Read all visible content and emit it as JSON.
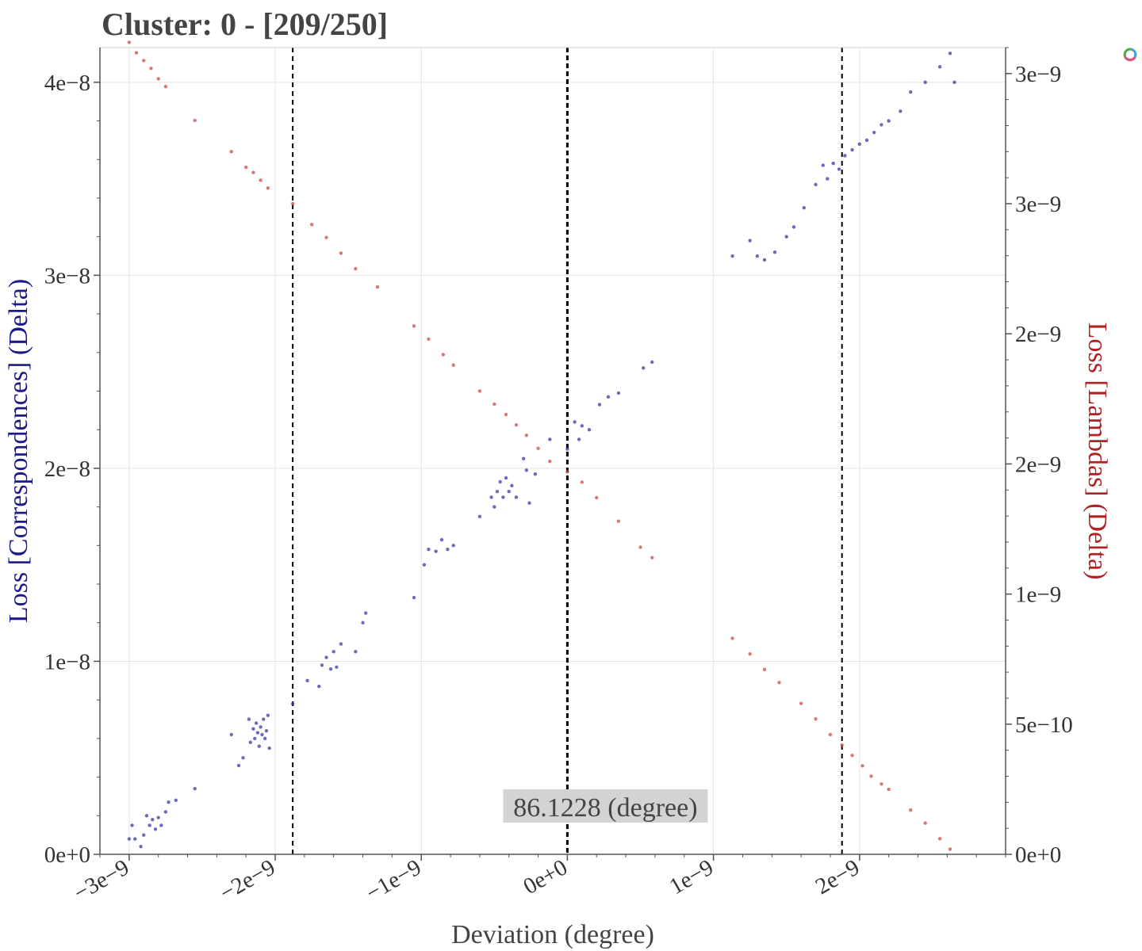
{
  "colors": {
    "left_series": "#3a3aa8",
    "right_series": "#cd4a4a",
    "grid": "#e3e3e3",
    "annotation_bg": "#d3d3d3"
  },
  "toolbar": {
    "logo_icon": "bokeh-logo-icon"
  },
  "chart_data": {
    "type": "scatter",
    "title": "Cluster: 0 - [209/250]",
    "xlabel": "Deviation (degree)",
    "ylabel": "Loss [Correspondences] (Delta)",
    "y2label": "Loss [Lambdas] (Delta)",
    "xlim": [
      -3.2e-09,
      3e-09
    ],
    "ylim": [
      0,
      4.18e-08
    ],
    "y2lim": [
      0,
      3.1e-09
    ],
    "x_ticks": [
      "−3e−9",
      "−2e−9",
      "−1e−9",
      "0e+0",
      "1e−9",
      "2e−9"
    ],
    "x_tick_values": [
      -3e-09,
      -2e-09,
      -1e-09,
      0,
      1e-09,
      2e-09
    ],
    "y_ticks": [
      "0e+0",
      "1e−8",
      "2e−8",
      "3e−8",
      "4e−8"
    ],
    "y_tick_values": [
      0,
      1e-08,
      2e-08,
      3e-08,
      4e-08
    ],
    "y2_ticks": [
      "0e+0",
      "5e−10",
      "1e−9",
      "2e−9",
      "2e−9",
      "3e−9",
      "3e−9"
    ],
    "y2_tick_values": [
      0,
      5e-10,
      1e-09,
      1.5e-09,
      2e-09,
      2.5e-09,
      3e-09
    ],
    "vlines": [
      {
        "x": -1.88e-09,
        "style": "dashed"
      },
      {
        "x": 0,
        "style": "dashed-bold"
      },
      {
        "x": 1.88e-09,
        "style": "dashed"
      }
    ],
    "annotation": {
      "text": "86.1228 (degree)",
      "x": 0
    },
    "grid": true,
    "series": [
      {
        "axis": "left",
        "color": "#3a3aa8",
        "points": [
          [
            -3e-09,
            8e-10
          ],
          [
            -2.98e-09,
            1.5e-09
          ],
          [
            -2.96e-09,
            8e-10
          ],
          [
            -2.92e-09,
            4e-10
          ],
          [
            -2.9e-09,
            1e-09
          ],
          [
            -2.88e-09,
            2e-09
          ],
          [
            -2.86e-09,
            1.5e-09
          ],
          [
            -2.84e-09,
            1.8e-09
          ],
          [
            -2.82e-09,
            1.3e-09
          ],
          [
            -2.8e-09,
            1.9e-09
          ],
          [
            -2.78e-09,
            1.5e-09
          ],
          [
            -2.75e-09,
            2.2e-09
          ],
          [
            -2.73e-09,
            2.7e-09
          ],
          [
            -2.68e-09,
            2.8e-09
          ],
          [
            -2.55e-09,
            3.4e-09
          ],
          [
            -2.3e-09,
            6.2e-09
          ],
          [
            -2.25e-09,
            4.6e-09
          ],
          [
            -2.22e-09,
            5e-09
          ],
          [
            -2.18e-09,
            7e-09
          ],
          [
            -2.17e-09,
            5.8e-09
          ],
          [
            -2.15e-09,
            6.5e-09
          ],
          [
            -2.14e-09,
            6e-09
          ],
          [
            -2.13e-09,
            6.8e-09
          ],
          [
            -2.12e-09,
            6.3e-09
          ],
          [
            -2.11e-09,
            5.6e-09
          ],
          [
            -2.1e-09,
            6.6e-09
          ],
          [
            -2.09e-09,
            6.2e-09
          ],
          [
            -2.08e-09,
            7e-09
          ],
          [
            -2.07e-09,
            6e-09
          ],
          [
            -2.06e-09,
            6.4e-09
          ],
          [
            -2.05e-09,
            7.2e-09
          ],
          [
            -2.04e-09,
            5.5e-09
          ],
          [
            -1.88e-09,
            7.8e-09
          ],
          [
            -1.78e-09,
            9e-09
          ],
          [
            -1.7e-09,
            8.7e-09
          ],
          [
            -1.68e-09,
            9.8e-09
          ],
          [
            -1.65e-09,
            1.02e-08
          ],
          [
            -1.62e-09,
            9.6e-09
          ],
          [
            -1.6e-09,
            1.05e-08
          ],
          [
            -1.58e-09,
            9.7e-09
          ],
          [
            -1.55e-09,
            1.09e-08
          ],
          [
            -1.45e-09,
            1.05e-08
          ],
          [
            -1.4e-09,
            1.2e-08
          ],
          [
            -1.38e-09,
            1.25e-08
          ],
          [
            -1.05e-09,
            1.33e-08
          ],
          [
            -9.8e-10,
            1.5e-08
          ],
          [
            -9.5e-10,
            1.58e-08
          ],
          [
            -9e-10,
            1.57e-08
          ],
          [
            -8.6e-10,
            1.63e-08
          ],
          [
            -8.2e-10,
            1.58e-08
          ],
          [
            -7.8e-10,
            1.6e-08
          ],
          [
            -6e-10,
            1.75e-08
          ],
          [
            -5.2e-10,
            1.85e-08
          ],
          [
            -5e-10,
            1.8e-08
          ],
          [
            -4.8e-10,
            1.88e-08
          ],
          [
            -4.6e-10,
            1.93e-08
          ],
          [
            -4.4e-10,
            1.85e-08
          ],
          [
            -4.2e-10,
            1.95e-08
          ],
          [
            -4e-10,
            1.88e-08
          ],
          [
            -3.8e-10,
            1.91e-08
          ],
          [
            -3.5e-10,
            1.85e-08
          ],
          [
            -3e-10,
            2.05e-08
          ],
          [
            -2.8e-10,
            1.99e-08
          ],
          [
            -2.6e-10,
            1.82e-08
          ],
          [
            -2.2e-10,
            1.97e-08
          ],
          [
            -1.2e-10,
            2.15e-08
          ],
          [
            0.0,
            2.1e-08
          ],
          [
            5e-11,
            2.24e-08
          ],
          [
            8e-11,
            2.15e-08
          ],
          [
            1e-10,
            2.22e-08
          ],
          [
            1.5e-10,
            2.2e-08
          ],
          [
            2.2e-10,
            2.33e-08
          ],
          [
            2.8e-10,
            2.37e-08
          ],
          [
            3.5e-10,
            2.39e-08
          ],
          [
            5.2e-10,
            2.52e-08
          ],
          [
            5.8e-10,
            2.55e-08
          ],
          [
            1.13e-09,
            3.1e-08
          ],
          [
            1.25e-09,
            3.18e-08
          ],
          [
            1.3e-09,
            3.1e-08
          ],
          [
            1.35e-09,
            3.08e-08
          ],
          [
            1.42e-09,
            3.12e-08
          ],
          [
            1.5e-09,
            3.2e-08
          ],
          [
            1.55e-09,
            3.25e-08
          ],
          [
            1.62e-09,
            3.35e-08
          ],
          [
            1.7e-09,
            3.47e-08
          ],
          [
            1.75e-09,
            3.57e-08
          ],
          [
            1.78e-09,
            3.5e-08
          ],
          [
            1.82e-09,
            3.58e-08
          ],
          [
            1.86e-09,
            3.55e-08
          ],
          [
            1.9e-09,
            3.62e-08
          ],
          [
            1.95e-09,
            3.65e-08
          ],
          [
            2e-09,
            3.68e-08
          ],
          [
            2.05e-09,
            3.7e-08
          ],
          [
            2.1e-09,
            3.74e-08
          ],
          [
            2.15e-09,
            3.78e-08
          ],
          [
            2.2e-09,
            3.8e-08
          ],
          [
            2.28e-09,
            3.85e-08
          ],
          [
            2.35e-09,
            3.95e-08
          ],
          [
            2.45e-09,
            4e-08
          ],
          [
            2.55e-09,
            4.08e-08
          ],
          [
            2.62e-09,
            4.15e-08
          ],
          [
            2.65e-09,
            4e-08
          ]
        ]
      },
      {
        "axis": "right",
        "color": "#cd4a4a",
        "points": [
          [
            -3e-09,
            3.12e-09
          ],
          [
            -2.95e-09,
            3.08e-09
          ],
          [
            -2.9e-09,
            3.05e-09
          ],
          [
            -2.85e-09,
            3.02e-09
          ],
          [
            -2.8e-09,
            2.98e-09
          ],
          [
            -2.75e-09,
            2.95e-09
          ],
          [
            -2.55e-09,
            2.82e-09
          ],
          [
            -2.3e-09,
            2.7e-09
          ],
          [
            -2.2e-09,
            2.64e-09
          ],
          [
            -2.15e-09,
            2.62e-09
          ],
          [
            -2.1e-09,
            2.59e-09
          ],
          [
            -2.05e-09,
            2.56e-09
          ],
          [
            -1.88e-09,
            2.5e-09
          ],
          [
            -1.75e-09,
            2.42e-09
          ],
          [
            -1.65e-09,
            2.37e-09
          ],
          [
            -1.55e-09,
            2.31e-09
          ],
          [
            -1.45e-09,
            2.25e-09
          ],
          [
            -1.3e-09,
            2.18e-09
          ],
          [
            -1.05e-09,
            2.03e-09
          ],
          [
            -9.5e-10,
            1.98e-09
          ],
          [
            -8.5e-10,
            1.92e-09
          ],
          [
            -7.8e-10,
            1.88e-09
          ],
          [
            -6e-10,
            1.78e-09
          ],
          [
            -5e-10,
            1.73e-09
          ],
          [
            -4.2e-10,
            1.69e-09
          ],
          [
            -3.5e-10,
            1.65e-09
          ],
          [
            -2.8e-10,
            1.61e-09
          ],
          [
            -2e-10,
            1.56e-09
          ],
          [
            -1.2e-10,
            1.51e-09
          ],
          [
            0.0,
            1.47e-09
          ],
          [
            1e-10,
            1.43e-09
          ],
          [
            2e-10,
            1.37e-09
          ],
          [
            3.5e-10,
            1.28e-09
          ],
          [
            5e-10,
            1.18e-09
          ],
          [
            5.8e-10,
            1.14e-09
          ],
          [
            1.13e-09,
            8.3e-10
          ],
          [
            1.25e-09,
            7.7e-10
          ],
          [
            1.35e-09,
            7.1e-10
          ],
          [
            1.45e-09,
            6.6e-10
          ],
          [
            1.6e-09,
            5.8e-10
          ],
          [
            1.7e-09,
            5.2e-10
          ],
          [
            1.8e-09,
            4.6e-10
          ],
          [
            1.88e-09,
            4.2e-10
          ],
          [
            1.95e-09,
            3.8e-10
          ],
          [
            2.02e-09,
            3.4e-10
          ],
          [
            2.08e-09,
            3e-10
          ],
          [
            2.15e-09,
            2.7e-10
          ],
          [
            2.2e-09,
            2.5e-10
          ],
          [
            2.35e-09,
            1.7e-10
          ],
          [
            2.45e-09,
            1.2e-10
          ],
          [
            2.55e-09,
            6e-11
          ],
          [
            2.62e-09,
            2e-11
          ]
        ]
      }
    ]
  }
}
